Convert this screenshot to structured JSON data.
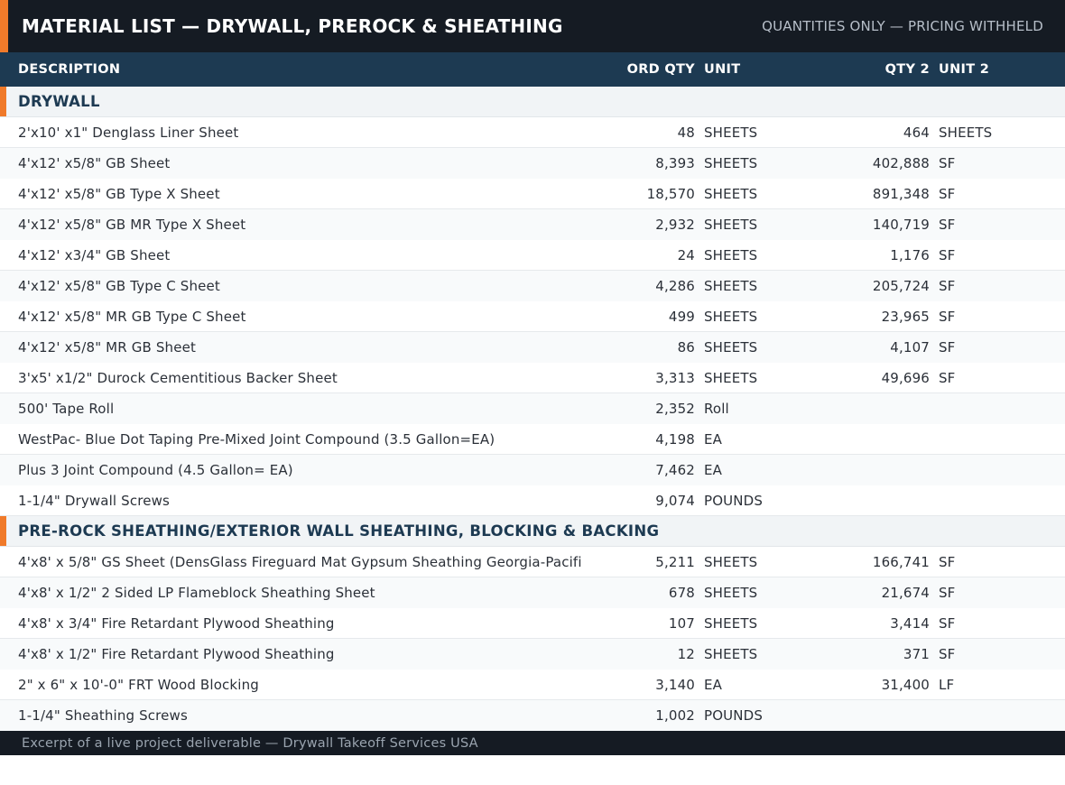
{
  "header": {
    "title": "MATERIAL LIST — DRYWALL, PREROCK & SHEATHING",
    "subtitle": "QUANTITIES ONLY — PRICING WITHHELD"
  },
  "columns": {
    "description": "DESCRIPTION",
    "ord_qty": "ORD QTY",
    "unit": "UNIT",
    "qty2": "QTY 2",
    "unit2": "UNIT 2"
  },
  "sections": [
    {
      "title": "DRYWALL",
      "rows": [
        {
          "desc": "2'x10' x1\" Denglass Liner Sheet",
          "qty": "48",
          "unit": "SHEETS",
          "qty2": "464",
          "unit2": "SHEETS"
        },
        {
          "desc": "4'x12' x5/8\" GB Sheet",
          "qty": "8,393",
          "unit": "SHEETS",
          "qty2": "402,888",
          "unit2": "SF"
        },
        {
          "desc": "4'x12' x5/8\" GB Type X Sheet",
          "qty": "18,570",
          "unit": "SHEETS",
          "qty2": "891,348",
          "unit2": "SF"
        },
        {
          "desc": "4'x12' x5/8\" GB MR Type X Sheet",
          "qty": "2,932",
          "unit": "SHEETS",
          "qty2": "140,719",
          "unit2": "SF"
        },
        {
          "desc": "4'x12' x3/4\" GB Sheet",
          "qty": "24",
          "unit": "SHEETS",
          "qty2": "1,176",
          "unit2": "SF"
        },
        {
          "desc": "4'x12' x5/8\" GB Type C Sheet",
          "qty": "4,286",
          "unit": "SHEETS",
          "qty2": "205,724",
          "unit2": "SF"
        },
        {
          "desc": "4'x12' x5/8\" MR GB Type C Sheet",
          "qty": "499",
          "unit": "SHEETS",
          "qty2": "23,965",
          "unit2": "SF"
        },
        {
          "desc": "4'x12' x5/8\" MR GB Sheet",
          "qty": "86",
          "unit": "SHEETS",
          "qty2": "4,107",
          "unit2": "SF"
        },
        {
          "desc": "3'x5' x1/2\" Durock Cementitious Backer Sheet",
          "qty": "3,313",
          "unit": "SHEETS",
          "qty2": "49,696",
          "unit2": "SF"
        },
        {
          "desc": "500' Tape Roll",
          "qty": "2,352",
          "unit": "Roll",
          "qty2": "",
          "unit2": ""
        },
        {
          "desc": "WestPac- Blue Dot Taping Pre-Mixed Joint Compound (3.5 Gallon=EA)",
          "qty": "4,198",
          "unit": "EA",
          "qty2": "",
          "unit2": ""
        },
        {
          "desc": "Plus 3 Joint Compound (4.5 Gallon= EA)",
          "qty": "7,462",
          "unit": "EA",
          "qty2": "",
          "unit2": ""
        },
        {
          "desc": "1-1/4\" Drywall Screws",
          "qty": "9,074",
          "unit": "POUNDS",
          "qty2": "",
          "unit2": ""
        }
      ]
    },
    {
      "title": "PRE-ROCK SHEATHING/EXTERIOR WALL SHEATHING, BLOCKING & BACKING",
      "rows": [
        {
          "desc": "4'x8' x 5/8\" GS Sheet (DensGlass Fireguard Mat Gypsum Sheathing Georgia-Pacifi",
          "qty": "5,211",
          "unit": "SHEETS",
          "qty2": "166,741",
          "unit2": "SF"
        },
        {
          "desc": "4'x8' x 1/2\" 2 Sided LP Flameblock Sheathing Sheet",
          "qty": "678",
          "unit": "SHEETS",
          "qty2": "21,674",
          "unit2": "SF"
        },
        {
          "desc": "4'x8' x 3/4\" Fire Retardant  Plywood Sheathing",
          "qty": "107",
          "unit": "SHEETS",
          "qty2": "3,414",
          "unit2": "SF"
        },
        {
          "desc": "4'x8' x 1/2\" Fire Retardant  Plywood Sheathing",
          "qty": "12",
          "unit": "SHEETS",
          "qty2": "371",
          "unit2": "SF"
        },
        {
          "desc": "2\" x 6\" x 10'-0\" FRT Wood Blocking",
          "qty": "3,140",
          "unit": "EA",
          "qty2": "31,400",
          "unit2": "LF"
        },
        {
          "desc": "1-1/4\" Sheathing Screws",
          "qty": "1,002",
          "unit": "POUNDS",
          "qty2": "",
          "unit2": ""
        }
      ]
    }
  ],
  "footer": {
    "text": "Excerpt of a live project deliverable — Drywall Takeoff Services USA"
  },
  "colors": {
    "accent": "#f07a2a",
    "header_bg": "#151b23",
    "column_header_bg": "#1d3a52"
  }
}
